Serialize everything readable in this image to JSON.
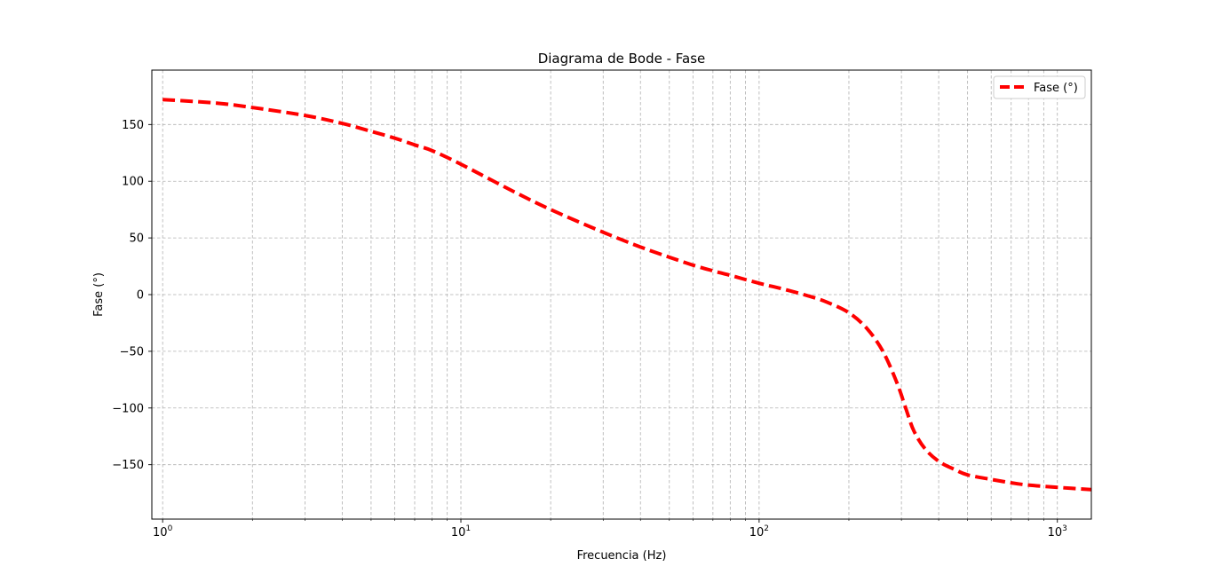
{
  "chart_data": {
    "type": "line",
    "title": "Diagrama de Bode - Fase",
    "xlabel": "Frecuencia (Hz)",
    "ylabel": "Fase (°)",
    "xscale": "log",
    "xlim": [
      0.92,
      1300
    ],
    "ylim": [
      -198,
      198
    ],
    "grid": true,
    "grid_style": "dashed",
    "legend_position": "top-right",
    "x_ticks": [
      {
        "value": 1,
        "base": "10",
        "exp": "0"
      },
      {
        "value": 10,
        "base": "10",
        "exp": "1"
      },
      {
        "value": 100,
        "base": "10",
        "exp": "2"
      },
      {
        "value": 1000,
        "base": "10",
        "exp": "3"
      }
    ],
    "y_ticks": [
      {
        "value": 150,
        "label": "150"
      },
      {
        "value": 100,
        "label": "100"
      },
      {
        "value": 50,
        "label": "50"
      },
      {
        "value": 0,
        "label": "0"
      },
      {
        "value": -50,
        "label": "−50"
      },
      {
        "value": -100,
        "label": "−100"
      },
      {
        "value": -150,
        "label": "−150"
      }
    ],
    "series": [
      {
        "name": "Fase (°)",
        "color": "#ff0000",
        "line_style": "dashed",
        "x": [
          1,
          1.5,
          2,
          3,
          4,
          5,
          6,
          7,
          8,
          10,
          15,
          20,
          30,
          40,
          50,
          60,
          70,
          80,
          100,
          120,
          150,
          170,
          200,
          230,
          260,
          290,
          310,
          330,
          360,
          400,
          450,
          500,
          600,
          700,
          800,
          1000,
          1300
        ],
        "y": [
          172,
          169,
          165,
          158,
          151,
          144,
          138,
          132,
          127,
          115,
          91,
          75,
          55,
          42,
          33,
          26,
          21,
          17,
          10,
          5,
          -2,
          -7,
          -16,
          -30,
          -50,
          -78,
          -100,
          -120,
          -136,
          -147,
          -154,
          -159,
          -163,
          -166,
          -168,
          -170,
          -172
        ]
      }
    ]
  }
}
